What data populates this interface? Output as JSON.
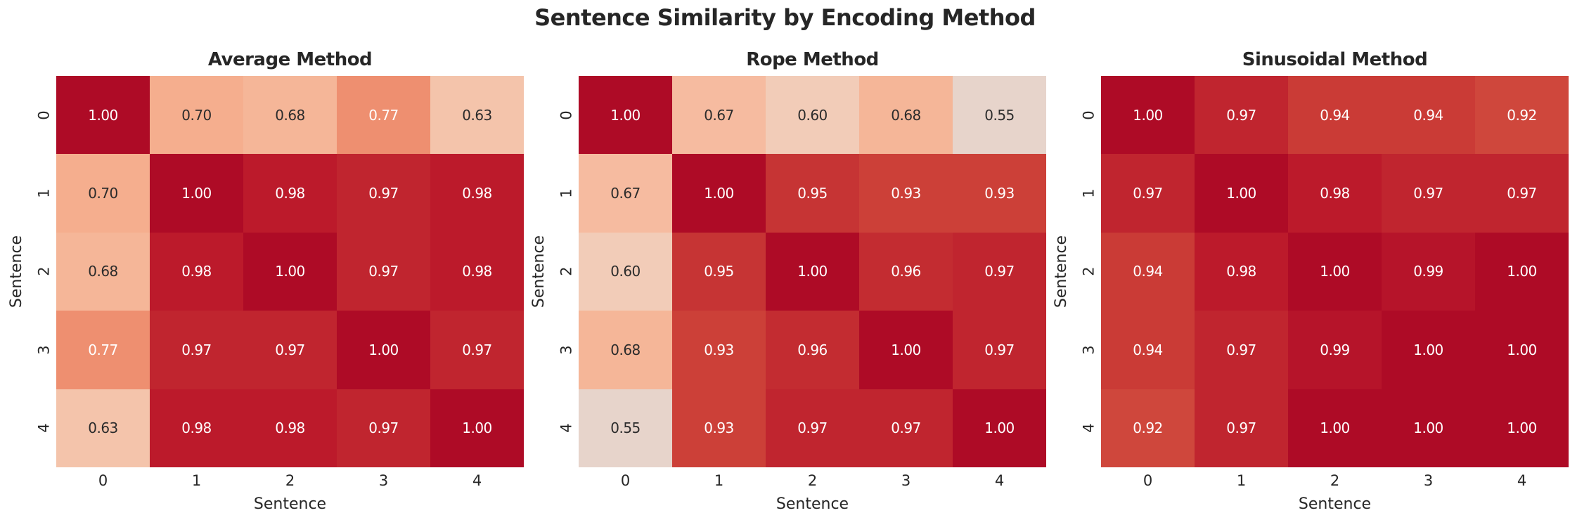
{
  "figure": {
    "title": "Sentence Similarity by Encoding Method"
  },
  "style": {
    "background": "#ffffff",
    "text_color": "#262626",
    "annotation_dark": "#2b2b2b",
    "annotation_light": "#ffffff",
    "text_white_threshold": 0.75,
    "value_colors": {
      "0.55": "#e7d4cb",
      "0.60": "#f2ccb8",
      "0.63": "#f4c4ab",
      "0.67": "#f6bba0",
      "0.68": "#f5b698",
      "0.70": "#f5ae8e",
      "0.77": "#ee8f70",
      "0.92": "#cf473c",
      "0.93": "#cc4038",
      "0.94": "#ca3b36",
      "0.95": "#c63434",
      "0.96": "#c32c31",
      "0.97": "#c0252f",
      "0.98": "#bc1a2b",
      "0.99": "#b6142a",
      "1.00": "#ae0b26"
    }
  },
  "chart_data": [
    {
      "type": "heatmap",
      "title": "Average Method",
      "xlabel": "Sentence",
      "ylabel": "Sentence",
      "x": [
        "0",
        "1",
        "2",
        "3",
        "4"
      ],
      "y": [
        "0",
        "1",
        "2",
        "3",
        "4"
      ],
      "values": [
        [
          1.0,
          0.7,
          0.68,
          0.77,
          0.63
        ],
        [
          0.7,
          1.0,
          0.98,
          0.97,
          0.98
        ],
        [
          0.68,
          0.98,
          1.0,
          0.97,
          0.98
        ],
        [
          0.77,
          0.97,
          0.97,
          1.0,
          0.97
        ],
        [
          0.63,
          0.98,
          0.98,
          0.97,
          1.0
        ]
      ]
    },
    {
      "type": "heatmap",
      "title": "Rope Method",
      "xlabel": "Sentence",
      "ylabel": "Sentence",
      "x": [
        "0",
        "1",
        "2",
        "3",
        "4"
      ],
      "y": [
        "0",
        "1",
        "2",
        "3",
        "4"
      ],
      "values": [
        [
          1.0,
          0.67,
          0.6,
          0.68,
          0.55
        ],
        [
          0.67,
          1.0,
          0.95,
          0.93,
          0.93
        ],
        [
          0.6,
          0.95,
          1.0,
          0.96,
          0.97
        ],
        [
          0.68,
          0.93,
          0.96,
          1.0,
          0.97
        ],
        [
          0.55,
          0.93,
          0.97,
          0.97,
          1.0
        ]
      ]
    },
    {
      "type": "heatmap",
      "title": "Sinusoidal Method",
      "xlabel": "Sentence",
      "ylabel": "Sentence",
      "x": [
        "0",
        "1",
        "2",
        "3",
        "4"
      ],
      "y": [
        "0",
        "1",
        "2",
        "3",
        "4"
      ],
      "values": [
        [
          1.0,
          0.97,
          0.94,
          0.94,
          0.92
        ],
        [
          0.97,
          1.0,
          0.98,
          0.97,
          0.97
        ],
        [
          0.94,
          0.98,
          1.0,
          0.99,
          1.0
        ],
        [
          0.94,
          0.97,
          0.99,
          1.0,
          1.0
        ],
        [
          0.92,
          0.97,
          1.0,
          1.0,
          1.0
        ]
      ]
    }
  ]
}
